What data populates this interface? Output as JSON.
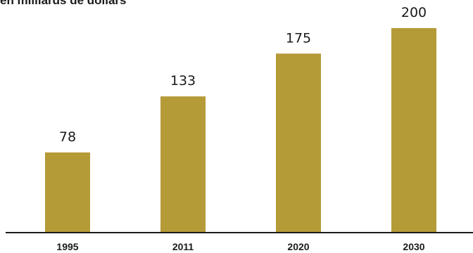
{
  "chart_data": {
    "type": "bar",
    "title": "",
    "subtitle": "en milliards de dollars",
    "xlabel": "",
    "ylabel": "",
    "categories": [
      "1995",
      "2011",
      "2020",
      "2030"
    ],
    "values": [
      78,
      133,
      175,
      200
    ],
    "ylim": [
      0,
      200
    ],
    "grid": false,
    "legend": "none",
    "bar_color": "#b59a38",
    "axis_color": "#1a1a1a",
    "text_color": "#1a1a1a"
  }
}
